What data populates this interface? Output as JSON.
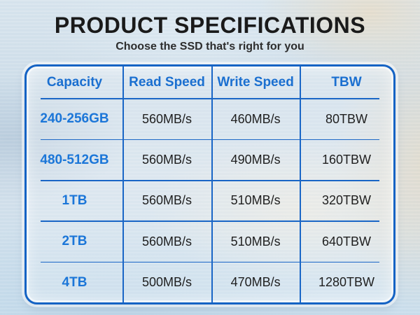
{
  "page": {
    "title": "PRODUCT SPECIFICATIONS",
    "subtitle": "Choose the SSD that's right for you"
  },
  "table": {
    "headers": [
      "Capacity",
      "Read Speed",
      "Write Speed",
      "TBW"
    ],
    "rows": [
      {
        "capacity": "240-256GB",
        "read_speed": "560MB/s",
        "write_speed": "460MB/s",
        "tbw": "80TBW"
      },
      {
        "capacity": "480-512GB",
        "read_speed": "560MB/s",
        "write_speed": "490MB/s",
        "tbw": "160TBW"
      },
      {
        "capacity": "1TB",
        "read_speed": "560MB/s",
        "write_speed": "510MB/s",
        "tbw": "320TBW"
      },
      {
        "capacity": "2TB",
        "read_speed": "560MB/s",
        "write_speed": "510MB/s",
        "tbw": "640TBW"
      },
      {
        "capacity": "4TB",
        "read_speed": "500MB/s",
        "write_speed": "470MB/s",
        "tbw": "1280TBW"
      }
    ]
  },
  "colors": {
    "accent_blue_border": "#1563c4",
    "accent_blue_lines": "#1a66c6",
    "header_text_blue": "#1a6fd0",
    "capacity_text_blue": "#1b76d8",
    "title_text": "#1a1a1a",
    "cell_text": "#1f1f1f",
    "background_blue": "#d2e0ec",
    "background_cream": "#e7dfcd"
  }
}
